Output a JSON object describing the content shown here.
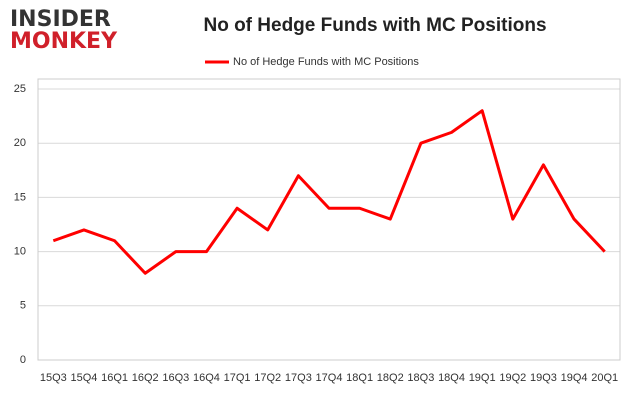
{
  "logo": {
    "line1": "INSIDER",
    "line2": "MONKEY"
  },
  "chart_data": {
    "type": "line",
    "title": "No of Hedge Funds with MC Positions",
    "categories": [
      "15Q3",
      "15Q4",
      "16Q1",
      "16Q2",
      "16Q3",
      "16Q4",
      "17Q1",
      "17Q2",
      "17Q3",
      "17Q4",
      "18Q1",
      "18Q2",
      "18Q3",
      "18Q4",
      "19Q1",
      "19Q2",
      "19Q3",
      "19Q4",
      "20Q1"
    ],
    "series": [
      {
        "name": "No of Hedge Funds with MC Positions",
        "color": "#ff0000",
        "values": [
          11,
          12,
          11,
          8,
          10,
          10,
          14,
          12,
          17,
          14,
          14,
          13,
          20,
          21,
          23,
          13,
          18,
          13,
          10
        ]
      }
    ],
    "ylim": [
      0,
      25
    ],
    "yticks": [
      0,
      5,
      10,
      15,
      20,
      25
    ],
    "grid": true,
    "legend": "top"
  }
}
